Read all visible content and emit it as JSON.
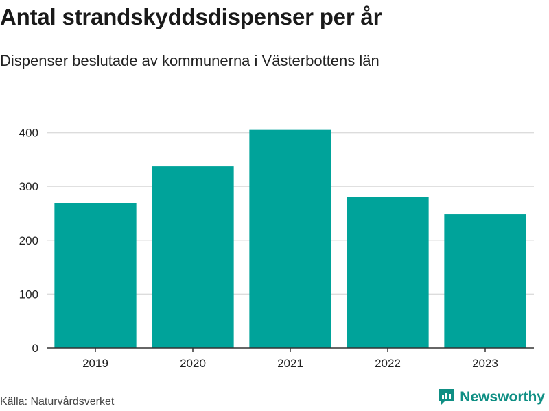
{
  "chart_data": {
    "type": "bar",
    "title": "Antal strandskyddsdispenser per år",
    "subtitle": "Dispenser beslutade av kommunerna i Västerbottens län",
    "categories": [
      "2019",
      "2020",
      "2021",
      "2022",
      "2023"
    ],
    "values": [
      269,
      337,
      405,
      280,
      248
    ],
    "xlabel": "",
    "ylabel": "",
    "ylim": [
      0,
      430
    ],
    "yticks": [
      0,
      100,
      200,
      300,
      400
    ],
    "grid": true,
    "bar_color": "#00a39a"
  },
  "footer": {
    "source": "Källa: Naturvårdsverket",
    "brand": "Newsworthy",
    "brand_icon": "newsworthy-logo-icon"
  }
}
